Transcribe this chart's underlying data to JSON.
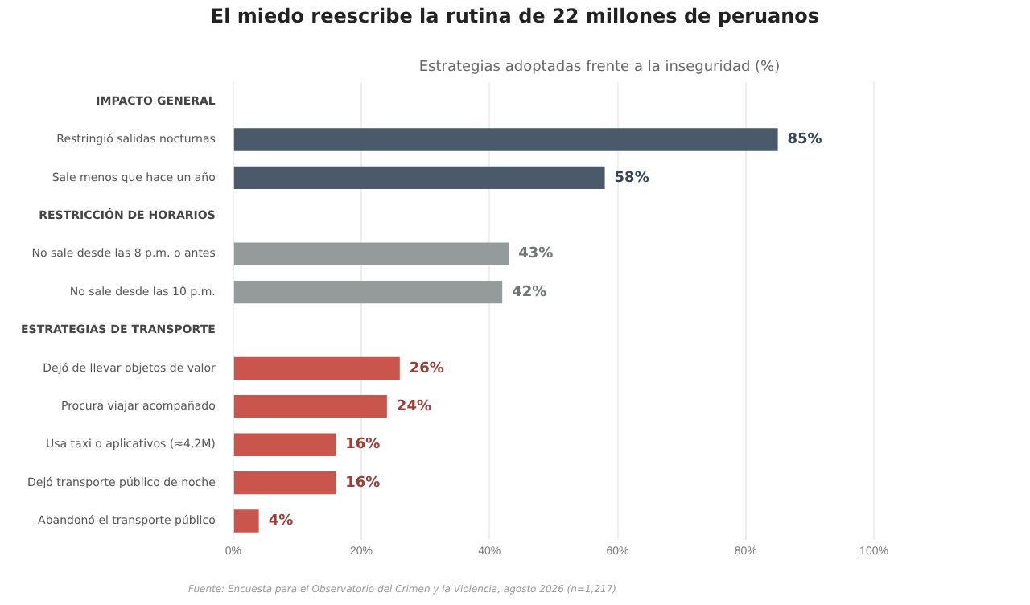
{
  "chart_data": {
    "type": "bar",
    "orientation": "horizontal",
    "title": "El miedo reescribe la rutina de 22 millones de peruanos",
    "subtitle": "Estrategias adoptadas frente a la inseguridad (%)",
    "categories": [
      "IMPACTO GENERAL",
      "Restringió salidas nocturnas",
      "Sale menos que hace un año",
      "RESTRICCIÓN DE HORARIOS",
      "No sale desde las 8 p.m. o antes",
      "No sale desde las 10 p.m.",
      "ESTRATEGIAS DE TRANSPORTE",
      "Dejó de llevar objetos de valor",
      "Procura viajar acompañado",
      "Usa taxi o aplicativos (≈4,2M)",
      "Dejó transporte público de noche",
      "Abandonó el transporte público"
    ],
    "values": [
      null,
      85,
      58,
      null,
      43,
      42,
      null,
      26,
      24,
      16,
      16,
      4
    ],
    "colors": [
      null,
      "#4a5a6b",
      "#4a5a6b",
      null,
      "#959b9b",
      "#959b9b",
      null,
      "#c9554c",
      "#c9554c",
      "#c9554c",
      "#c9554c",
      "#c9554c"
    ],
    "value_labels": [
      null,
      "85%",
      "58%",
      null,
      "43%",
      "42%",
      null,
      "26%",
      "24%",
      "16%",
      "16%",
      "4%"
    ],
    "xlim": [
      0,
      100
    ],
    "xticks": [
      {
        "value": 0,
        "label": "0%"
      },
      {
        "value": 20,
        "label": "20%"
      },
      {
        "value": 40,
        "label": "40%"
      },
      {
        "value": 60,
        "label": "60%"
      },
      {
        "value": 80,
        "label": "80%"
      },
      {
        "value": 100,
        "label": "100%"
      }
    ],
    "grid": "x",
    "legend": false,
    "annotations": [
      "Fuente: Encuesta para el Observatorio del Crimen y la Violencia, agosto 2026 (n=1,217)"
    ]
  }
}
